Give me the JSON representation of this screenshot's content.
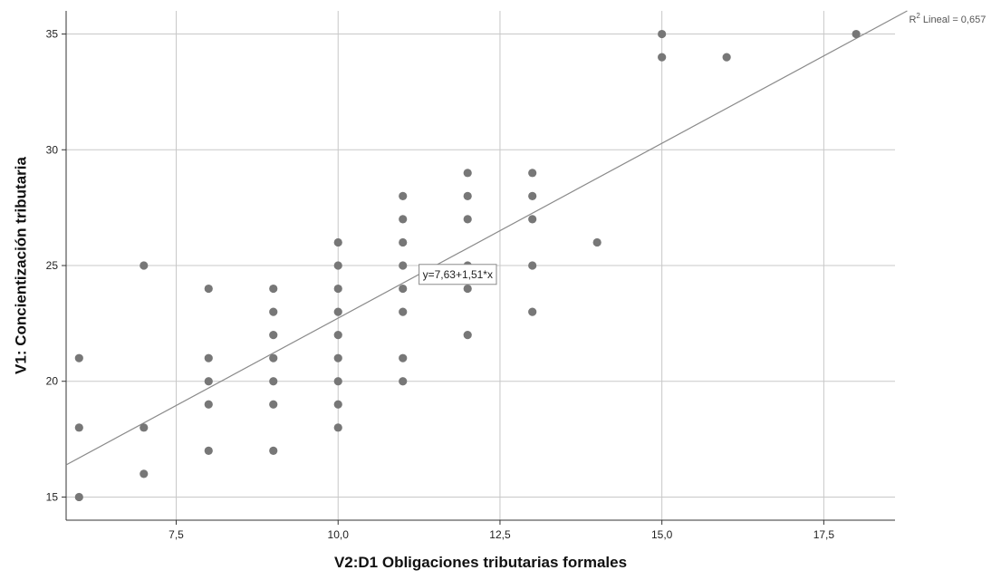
{
  "chart_data": {
    "type": "scatter",
    "title": "",
    "xlabel": "V2:D1 Obligaciones tributarias formales",
    "ylabel": "V1: Concientización tributaria",
    "xlim": [
      5.8,
      18.6
    ],
    "ylim": [
      14.0,
      36.0
    ],
    "x_ticks": [
      7.5,
      10.0,
      12.5,
      15.0,
      17.5
    ],
    "x_tick_labels": [
      "7,5",
      "10,0",
      "12,5",
      "15,0",
      "17,5"
    ],
    "y_ticks": [
      15,
      20,
      25,
      30,
      35
    ],
    "y_tick_labels": [
      "15",
      "20",
      "25",
      "30",
      "35"
    ],
    "grid": true,
    "point_color": "#777777",
    "line_color": "#8a8a8a",
    "points": [
      {
        "x": 6,
        "y": 21
      },
      {
        "x": 6,
        "y": 18
      },
      {
        "x": 6,
        "y": 15
      },
      {
        "x": 7,
        "y": 25
      },
      {
        "x": 7,
        "y": 18
      },
      {
        "x": 7,
        "y": 16
      },
      {
        "x": 8,
        "y": 24
      },
      {
        "x": 8,
        "y": 21
      },
      {
        "x": 8,
        "y": 20
      },
      {
        "x": 8,
        "y": 19
      },
      {
        "x": 8,
        "y": 17
      },
      {
        "x": 9,
        "y": 24
      },
      {
        "x": 9,
        "y": 23
      },
      {
        "x": 9,
        "y": 22
      },
      {
        "x": 9,
        "y": 21
      },
      {
        "x": 9,
        "y": 20
      },
      {
        "x": 9,
        "y": 19
      },
      {
        "x": 9,
        "y": 17
      },
      {
        "x": 10,
        "y": 26
      },
      {
        "x": 10,
        "y": 25
      },
      {
        "x": 10,
        "y": 24
      },
      {
        "x": 10,
        "y": 23
      },
      {
        "x": 10,
        "y": 22
      },
      {
        "x": 10,
        "y": 21
      },
      {
        "x": 10,
        "y": 20
      },
      {
        "x": 10,
        "y": 19
      },
      {
        "x": 10,
        "y": 18
      },
      {
        "x": 11,
        "y": 28
      },
      {
        "x": 11,
        "y": 27
      },
      {
        "x": 11,
        "y": 26
      },
      {
        "x": 11,
        "y": 25
      },
      {
        "x": 11,
        "y": 24
      },
      {
        "x": 11,
        "y": 23
      },
      {
        "x": 11,
        "y": 21
      },
      {
        "x": 11,
        "y": 20
      },
      {
        "x": 12,
        "y": 29
      },
      {
        "x": 12,
        "y": 28
      },
      {
        "x": 12,
        "y": 27
      },
      {
        "x": 12,
        "y": 25
      },
      {
        "x": 12,
        "y": 24
      },
      {
        "x": 12,
        "y": 22
      },
      {
        "x": 13,
        "y": 29
      },
      {
        "x": 13,
        "y": 28
      },
      {
        "x": 13,
        "y": 27
      },
      {
        "x": 13,
        "y": 25
      },
      {
        "x": 13,
        "y": 23
      },
      {
        "x": 14,
        "y": 26
      },
      {
        "x": 15,
        "y": 35
      },
      {
        "x": 15,
        "y": 34
      },
      {
        "x": 16,
        "y": 34
      },
      {
        "x": 18,
        "y": 35
      }
    ],
    "fit_line": {
      "intercept": 7.63,
      "slope": 1.51,
      "equation_label": "y=7,63+1,51*x",
      "r2_prefix": "R",
      "r2_superscript": "2",
      "r2_suffix": " Lineal = 0,657"
    }
  }
}
